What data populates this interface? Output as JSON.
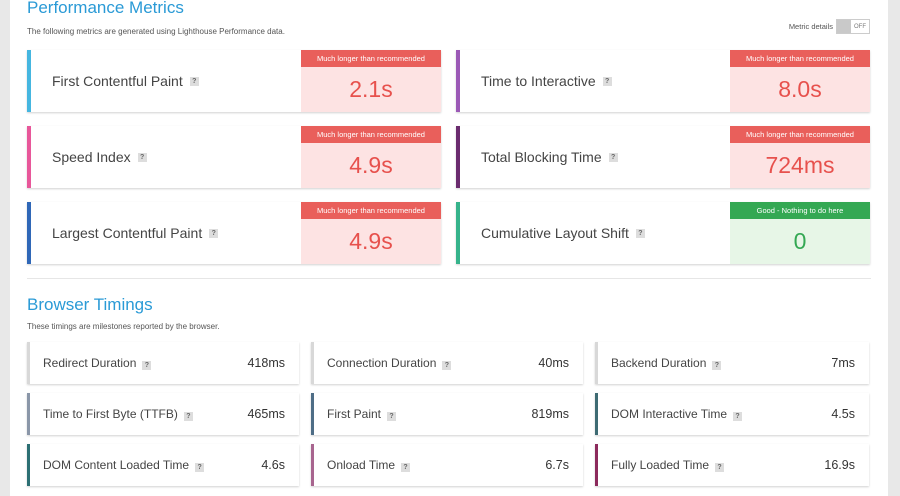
{
  "performance": {
    "title": "Performance Metrics",
    "subtitle": "The following metrics are generated using Lighthouse Performance data.",
    "toggle_label": "Metric details",
    "toggle_state": "OFF",
    "metrics": [
      {
        "label": "First Contentful Paint",
        "badge": "Much longer than recommended",
        "value": "2.1s",
        "status": "bad",
        "accent": "#45b6e0"
      },
      {
        "label": "Time to Interactive",
        "badge": "Much longer than recommended",
        "value": "8.0s",
        "status": "bad",
        "accent": "#9b59b6"
      },
      {
        "label": "Speed Index",
        "badge": "Much longer than recommended",
        "value": "4.9s",
        "status": "bad",
        "accent": "#e8579a"
      },
      {
        "label": "Total Blocking Time",
        "badge": "Much longer than recommended",
        "value": "724ms",
        "status": "bad",
        "accent": "#6a2b6e"
      },
      {
        "label": "Largest Contentful Paint",
        "badge": "Much longer than recommended",
        "value": "4.9s",
        "status": "bad",
        "accent": "#2f67b7"
      },
      {
        "label": "Cumulative Layout Shift",
        "badge": "Good - Nothing to do here",
        "value": "0",
        "status": "good",
        "accent": "#36b38b"
      }
    ]
  },
  "timings": {
    "title": "Browser Timings",
    "subtitle": "These timings are milestones reported by the browser.",
    "items": [
      {
        "label": "Redirect Duration",
        "value": "418ms",
        "accent": "#d8d8d8"
      },
      {
        "label": "Connection Duration",
        "value": "40ms",
        "accent": "#d8d8d8"
      },
      {
        "label": "Backend Duration",
        "value": "7ms",
        "accent": "#d8d8d8"
      },
      {
        "label": "Time to First Byte (TTFB)",
        "value": "465ms",
        "accent": "#8a96a8"
      },
      {
        "label": "First Paint",
        "value": "819ms",
        "accent": "#4e6d86"
      },
      {
        "label": "DOM Interactive Time",
        "value": "4.5s",
        "accent": "#3e6b73"
      },
      {
        "label": "DOM Content Loaded Time",
        "value": "4.6s",
        "accent": "#2c6f73"
      },
      {
        "label": "Onload Time",
        "value": "6.7s",
        "accent": "#a8658f"
      },
      {
        "label": "Fully Loaded Time",
        "value": "16.9s",
        "accent": "#8c2a5c"
      }
    ]
  },
  "icons": {
    "help": "?"
  }
}
